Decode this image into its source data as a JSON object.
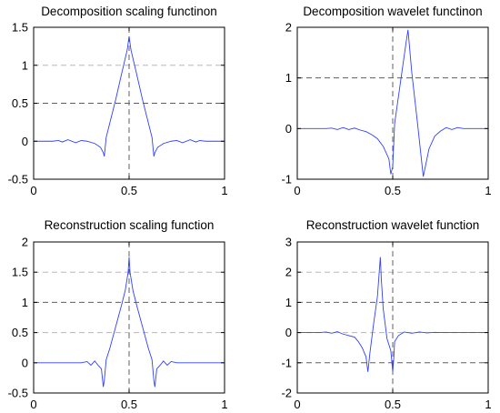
{
  "chart_data": [
    {
      "type": "line",
      "title": "Decomposition scaling functinon",
      "xlim": [
        0,
        1
      ],
      "ylim": [
        -0.5,
        1.5
      ],
      "xticks": [
        0,
        0.5,
        1
      ],
      "xtick_labels": [
        "0",
        "0.5",
        "1"
      ],
      "yticks": [
        -0.5,
        0,
        0.5,
        1,
        1.5
      ],
      "ytick_labels": [
        "-0.5",
        "0",
        "0.5",
        "1",
        "1.5"
      ],
      "guides": {
        "vertical": [
          0.5
        ],
        "horizontal_light": [
          1
        ],
        "horizontal_dark": [
          0.5
        ]
      },
      "color": "#3040ff",
      "series": [
        {
          "x": [
            0,
            0.1,
            0.13,
            0.15,
            0.18,
            0.22,
            0.25,
            0.28,
            0.32,
            0.35,
            0.365,
            0.37,
            0.38,
            0.4,
            0.43,
            0.46,
            0.49,
            0.5,
            0.51,
            0.54,
            0.57,
            0.6,
            0.62,
            0.63,
            0.635,
            0.65,
            0.68,
            0.72,
            0.75,
            0.78,
            0.82,
            0.85,
            0.87,
            0.9,
            1
          ],
          "y": [
            0,
            0,
            0.01,
            -0.01,
            0.02,
            -0.02,
            0.01,
            0,
            -0.03,
            -0.08,
            -0.15,
            -0.2,
            0.05,
            0.25,
            0.55,
            0.88,
            1.2,
            1.38,
            1.2,
            0.88,
            0.55,
            0.25,
            0.05,
            -0.2,
            -0.15,
            -0.08,
            -0.03,
            0,
            0.01,
            -0.02,
            0.02,
            -0.01,
            0.01,
            0,
            0
          ]
        }
      ]
    },
    {
      "type": "line",
      "title": "Decomposition wavelet functinon",
      "xlim": [
        0,
        1
      ],
      "ylim": [
        -1,
        2
      ],
      "xticks": [
        0,
        0.5,
        1
      ],
      "xtick_labels": [
        "0",
        "0.5",
        "1"
      ],
      "yticks": [
        -1,
        0,
        1,
        2
      ],
      "ytick_labels": [
        "-1",
        "0",
        "1",
        "2"
      ],
      "guides": {
        "vertical": [
          0.5
        ],
        "horizontal_light": [],
        "horizontal_dark": [
          1
        ]
      },
      "color": "#3040ff",
      "series": [
        {
          "x": [
            0,
            0.15,
            0.18,
            0.21,
            0.24,
            0.27,
            0.3,
            0.33,
            0.36,
            0.39,
            0.42,
            0.45,
            0.48,
            0.49,
            0.5,
            0.51,
            0.54,
            0.57,
            0.58,
            0.6,
            0.63,
            0.65,
            0.66,
            0.69,
            0.72,
            0.75,
            0.78,
            0.81,
            0.84,
            0.87,
            1
          ],
          "y": [
            0,
            0,
            0.01,
            -0.02,
            0.02,
            -0.02,
            0.01,
            -0.03,
            -0.06,
            -0.12,
            -0.2,
            -0.35,
            -0.6,
            -0.9,
            -0.75,
            0.1,
            0.9,
            1.7,
            1.95,
            1.1,
            0.1,
            -0.6,
            -0.95,
            -0.4,
            -0.15,
            -0.05,
            0.02,
            -0.02,
            0.02,
            0,
            0
          ]
        }
      ]
    },
    {
      "type": "line",
      "title": "Reconstruction scaling function",
      "xlim": [
        0,
        1
      ],
      "ylim": [
        -0.5,
        2
      ],
      "xticks": [
        0,
        0.5,
        1
      ],
      "xtick_labels": [
        "0",
        "0.5",
        "1"
      ],
      "yticks": [
        -0.5,
        0,
        0.5,
        1,
        1.5,
        2
      ],
      "ytick_labels": [
        "-0.5",
        "0",
        "0.5",
        "1",
        "1.5",
        "2"
      ],
      "guides": {
        "vertical": [
          0.5
        ],
        "horizontal_light": [
          1.5,
          0.5
        ],
        "horizontal_dark": [
          1
        ]
      },
      "color": "#3040ff",
      "series": [
        {
          "x": [
            0,
            0.15,
            0.2,
            0.25,
            0.28,
            0.3,
            0.32,
            0.34,
            0.355,
            0.36,
            0.365,
            0.37,
            0.38,
            0.4,
            0.43,
            0.46,
            0.48,
            0.49,
            0.495,
            0.5,
            0.505,
            0.51,
            0.52,
            0.54,
            0.57,
            0.6,
            0.62,
            0.63,
            0.635,
            0.64,
            0.645,
            0.66,
            0.68,
            0.7,
            0.72,
            0.75,
            0.8,
            1
          ],
          "y": [
            0,
            0,
            0,
            0,
            0.02,
            -0.04,
            0.03,
            -0.05,
            -0.1,
            -0.25,
            -0.4,
            -0.3,
            0.05,
            0.25,
            0.6,
            0.95,
            1.2,
            1.4,
            1.5,
            1.75,
            1.5,
            1.4,
            1.2,
            0.95,
            0.6,
            0.25,
            0.05,
            -0.3,
            -0.4,
            -0.25,
            -0.1,
            -0.05,
            0.03,
            -0.04,
            0.02,
            0,
            0,
            0
          ]
        }
      ]
    },
    {
      "type": "line",
      "title": "Reconstruction wavelet function",
      "xlim": [
        0,
        1
      ],
      "ylim": [
        -2,
        3
      ],
      "xticks": [
        0,
        0.5,
        1
      ],
      "xtick_labels": [
        "0",
        "0.5",
        "1"
      ],
      "yticks": [
        -2,
        -1,
        0,
        1,
        2,
        3
      ],
      "ytick_labels": [
        "-2",
        "-1",
        "0",
        "1",
        "2",
        "3"
      ],
      "guides": {
        "vertical": [
          0.5
        ],
        "horizontal_light": [
          2,
          0
        ],
        "horizontal_dark": [
          1,
          -1
        ]
      },
      "color": "#3040ff",
      "series": [
        {
          "x": [
            0,
            0.12,
            0.15,
            0.18,
            0.21,
            0.24,
            0.27,
            0.3,
            0.32,
            0.34,
            0.36,
            0.37,
            0.38,
            0.4,
            0.42,
            0.435,
            0.44,
            0.45,
            0.47,
            0.49,
            0.5,
            0.505,
            0.51,
            0.53,
            0.56,
            0.6,
            0.64,
            0.68,
            0.72,
            0.75,
            1
          ],
          "y": [
            0,
            0,
            0.02,
            -0.02,
            0.03,
            -0.05,
            -0.1,
            -0.15,
            -0.3,
            -0.5,
            -0.8,
            -1.3,
            -0.7,
            0.3,
            1.2,
            2.5,
            1.8,
            0.8,
            -0.2,
            -0.6,
            -1.3,
            -0.9,
            -0.3,
            -0.1,
            0.02,
            -0.02,
            0.02,
            -0.01,
            0.01,
            0,
            0
          ]
        }
      ]
    }
  ]
}
